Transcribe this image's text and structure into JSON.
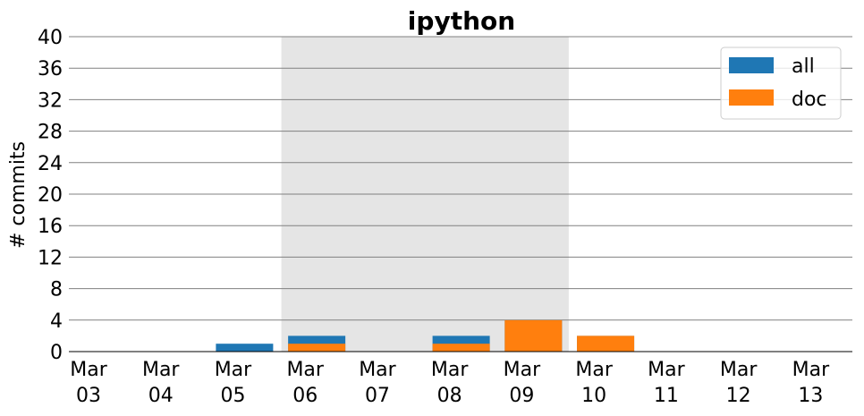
{
  "chart_data": {
    "type": "bar",
    "title": "ipython",
    "xlabel": "",
    "ylabel": "# commits",
    "ylim": [
      0,
      40
    ],
    "yticks": [
      0,
      4,
      8,
      12,
      16,
      20,
      24,
      28,
      32,
      36,
      40
    ],
    "grid": "horizontal",
    "legend_position": "top-right",
    "highlight_range": {
      "from": "Mar 06",
      "to": "Mar 09",
      "color": "#e5e5e5"
    },
    "categories": [
      {
        "month": "Mar",
        "day": "03"
      },
      {
        "month": "Mar",
        "day": "04"
      },
      {
        "month": "Mar",
        "day": "05"
      },
      {
        "month": "Mar",
        "day": "06"
      },
      {
        "month": "Mar",
        "day": "07"
      },
      {
        "month": "Mar",
        "day": "08"
      },
      {
        "month": "Mar",
        "day": "09"
      },
      {
        "month": "Mar",
        "day": "10"
      },
      {
        "month": "Mar",
        "day": "11"
      },
      {
        "month": "Mar",
        "day": "12"
      },
      {
        "month": "Mar",
        "day": "13"
      }
    ],
    "series": [
      {
        "name": "all",
        "color": "#1f77b4",
        "values": [
          0,
          0,
          1,
          2,
          0,
          2,
          4,
          2,
          0,
          0,
          0
        ]
      },
      {
        "name": "doc",
        "color": "#ff7f0e",
        "values": [
          0,
          0,
          0,
          1,
          0,
          1,
          4,
          2,
          0,
          0,
          0
        ]
      }
    ]
  }
}
